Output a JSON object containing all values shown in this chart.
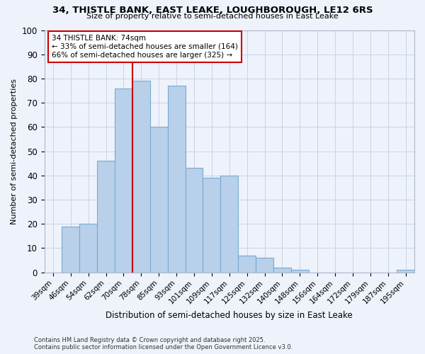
{
  "title1": "34, THISTLE BANK, EAST LEAKE, LOUGHBOROUGH, LE12 6RS",
  "title2": "Size of property relative to semi-detached houses in East Leake",
  "xlabel": "Distribution of semi-detached houses by size in East Leake",
  "ylabel": "Number of semi-detached properties",
  "categories": [
    "39sqm",
    "46sqm",
    "54sqm",
    "62sqm",
    "70sqm",
    "78sqm",
    "85sqm",
    "93sqm",
    "101sqm",
    "109sqm",
    "117sqm",
    "125sqm",
    "132sqm",
    "140sqm",
    "148sqm",
    "156sqm",
    "164sqm",
    "172sqm",
    "179sqm",
    "187sqm",
    "195sqm"
  ],
  "values": [
    0,
    19,
    20,
    46,
    76,
    79,
    60,
    77,
    43,
    39,
    40,
    7,
    6,
    2,
    1,
    0,
    0,
    0,
    0,
    0,
    1
  ],
  "bar_color": "#b8d0ea",
  "bar_edge_color": "#7aaacf",
  "red_line_x": 4.5,
  "annotation_title": "34 THISTLE BANK: 74sqm",
  "annotation_line1": "← 33% of semi-detached houses are smaller (164)",
  "annotation_line2": "66% of semi-detached houses are larger (325) →",
  "red_line_color": "#cc0000",
  "annotation_box_color": "#ffffff",
  "annotation_box_edge": "#cc0000",
  "footer1": "Contains HM Land Registry data © Crown copyright and database right 2025.",
  "footer2": "Contains public sector information licensed under the Open Government Licence v3.0.",
  "background_color": "#eef2fb",
  "grid_color": "#c5cde0",
  "ylim": [
    0,
    100
  ]
}
